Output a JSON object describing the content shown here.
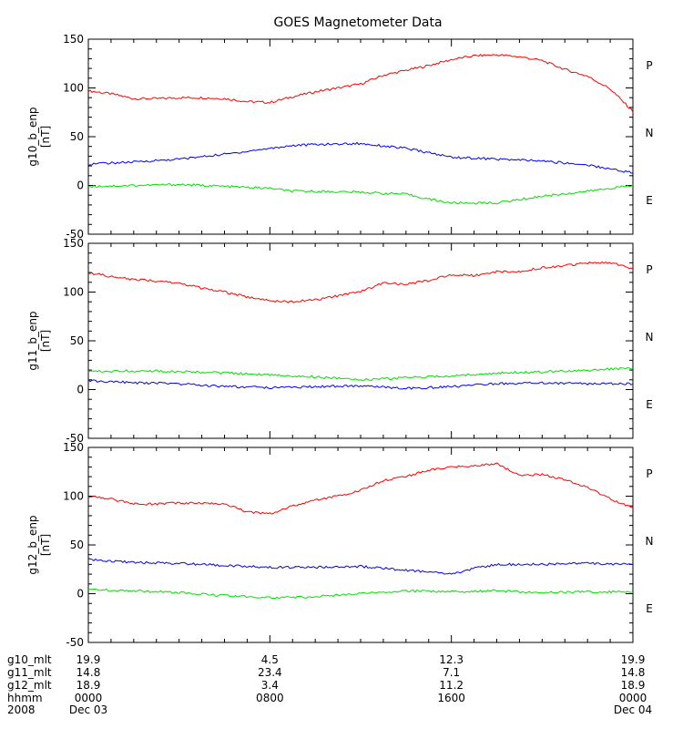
{
  "chart_data": {
    "type": "line",
    "title": "GOES Magnetometer Data",
    "colors": {
      "P": "#ff0000",
      "N": "#00e000",
      "E": "#0000ff"
    },
    "panels": [
      {
        "ylabel": "g10_b_enp",
        "yunit": "[nT]",
        "ylim": [
          -50,
          150
        ],
        "yticks": [
          "150",
          "100",
          "50",
          "0",
          "-50"
        ],
        "legend": [
          "P",
          "N",
          "E"
        ],
        "series": [
          {
            "name": "P",
            "color": "#ff0000",
            "x": [
              0,
              1,
              2,
              3,
              4,
              5,
              6,
              7,
              8,
              9,
              10,
              11,
              12,
              13,
              14,
              15,
              16,
              17,
              18,
              19,
              20,
              21,
              22,
              23,
              24
            ],
            "y": [
              97,
              94,
              89,
              89,
              90,
              90,
              89,
              86,
              85,
              91,
              96,
              100,
              104,
              113,
              118,
              123,
              129,
              133,
              134,
              132,
              128,
              119,
              112,
              99,
              76
            ]
          },
          {
            "name": "N",
            "color": "#00e000",
            "x": [
              0,
              2,
              4,
              6,
              8,
              9,
              10,
              12,
              14,
              15,
              16,
              18,
              20,
              22,
              24
            ],
            "y": [
              -1,
              0,
              1,
              -1,
              -3,
              -6,
              -6,
              -7,
              -9,
              -14,
              -18,
              -18,
              -11,
              -6,
              0
            ]
          },
          {
            "name": "E",
            "color": "#0000ff",
            "x": [
              0,
              2,
              4,
              6,
              8,
              9,
              10,
              12,
              14,
              16,
              18,
              20,
              22,
              24
            ],
            "y": [
              22,
              24,
              27,
              32,
              38,
              41,
              42,
              43,
              38,
              29,
              27,
              25,
              21,
              13
            ]
          }
        ]
      },
      {
        "ylabel": "g11_b_enp",
        "yunit": "[nT]",
        "ylim": [
          -50,
          150
        ],
        "yticks": [
          "150",
          "100",
          "50",
          "0",
          "-50"
        ],
        "legend": [
          "P",
          "N",
          "E"
        ],
        "series": [
          {
            "name": "P",
            "color": "#ff0000",
            "x": [
              0,
              1,
              2,
              3,
              4,
              5,
              6,
              7,
              8,
              9,
              10,
              11,
              12,
              13,
              14,
              15,
              16,
              17,
              18,
              19,
              20,
              21,
              22,
              23,
              24
            ],
            "y": [
              120,
              116,
              113,
              111,
              109,
              104,
              100,
              95,
              91,
              90,
              92,
              96,
              101,
              109,
              108,
              112,
              118,
              117,
              121,
              121,
              125,
              127,
              130,
              130,
              124
            ]
          },
          {
            "name": "N",
            "color": "#00e000",
            "x": [
              0,
              3,
              6,
              8,
              10,
              12,
              14,
              16,
              18,
              20,
              22,
              24
            ],
            "y": [
              19,
              19,
              17,
              15,
              13,
              10,
              12,
              14,
              17,
              18,
              20,
              22
            ]
          },
          {
            "name": "E",
            "color": "#0000ff",
            "x": [
              0,
              2,
              4,
              6,
              8,
              10,
              12,
              14,
              16,
              18,
              20,
              22,
              24
            ],
            "y": [
              9,
              7,
              6,
              3,
              2,
              3,
              4,
              1,
              3,
              6,
              7,
              6,
              6
            ]
          }
        ]
      },
      {
        "ylabel": "g12_b_enp",
        "yunit": "[nT]",
        "ylim": [
          -50,
          150
        ],
        "yticks": [
          "150",
          "100",
          "50",
          "0",
          "-50"
        ],
        "legend": [
          "P",
          "N",
          "E"
        ],
        "series": [
          {
            "name": "P",
            "color": "#ff0000",
            "x": [
              0,
              1,
              2,
              3,
              4,
              5,
              6,
              7,
              8,
              9,
              10,
              11,
              12,
              13,
              14,
              15,
              16,
              17,
              18,
              19,
              20,
              21,
              22,
              23,
              24
            ],
            "y": [
              100,
              97,
              92,
              92,
              93,
              93,
              92,
              84,
              82,
              90,
              96,
              100,
              106,
              116,
              120,
              127,
              130,
              131,
              133,
              122,
              122,
              117,
              109,
              97,
              88
            ]
          },
          {
            "name": "N",
            "color": "#00e000",
            "x": [
              0,
              2,
              4,
              6,
              8,
              9,
              10,
              12,
              14,
              16,
              18,
              20,
              22,
              24
            ],
            "y": [
              4,
              3,
              1,
              -2,
              -4,
              -4,
              -3,
              0,
              3,
              2,
              3,
              1,
              2,
              2
            ]
          },
          {
            "name": "E",
            "color": "#0000ff",
            "x": [
              0,
              2,
              4,
              6,
              8,
              10,
              12,
              14,
              15,
              16,
              17,
              18,
              20,
              22,
              24
            ],
            "y": [
              35,
              32,
              31,
              29,
              27,
              27,
              28,
              24,
              22,
              20,
              26,
              30,
              30,
              31,
              30
            ]
          }
        ]
      }
    ],
    "xlim": [
      0,
      24
    ],
    "footer": {
      "labels": [
        "g10_mlt",
        "g11_mlt",
        "g12_mlt",
        "hhmm",
        "2008"
      ],
      "columns": [
        {
          "x": 0,
          "values": [
            "19.9",
            "14.8",
            "18.9",
            "0000",
            "Dec 03"
          ]
        },
        {
          "x": 8,
          "values": [
            "4.5",
            "23.4",
            "3.4",
            "0800",
            ""
          ]
        },
        {
          "x": 16,
          "values": [
            "12.3",
            "7.1",
            "11.2",
            "1600",
            ""
          ]
        },
        {
          "x": 24,
          "values": [
            "19.9",
            "14.8",
            "18.9",
            "0000",
            "Dec 04"
          ]
        }
      ]
    }
  }
}
